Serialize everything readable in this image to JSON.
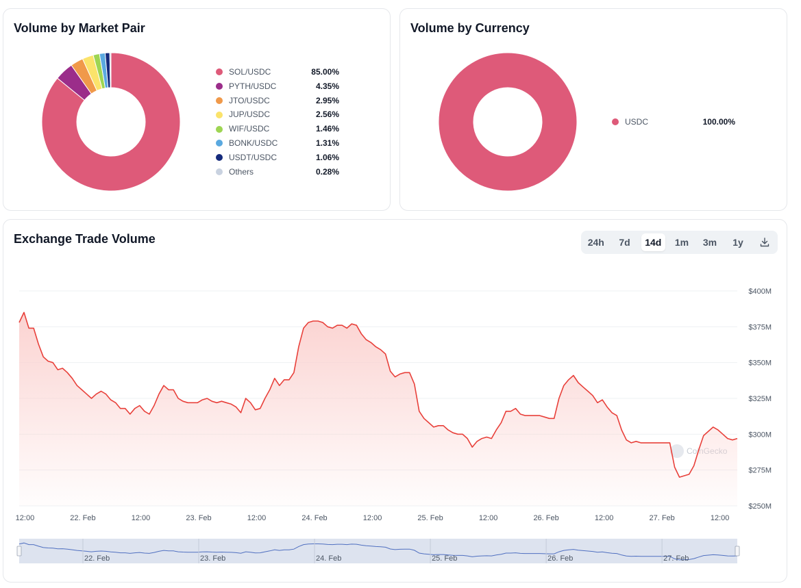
{
  "pair_card": {
    "title": "Volume by Market Pair",
    "items": [
      {
        "label": "SOL/USDC",
        "value": "85.00%",
        "pct": 85.0,
        "color": "#de5a79"
      },
      {
        "label": "PYTH/USDC",
        "value": "4.35%",
        "pct": 4.35,
        "color": "#9b2d8a"
      },
      {
        "label": "JTO/USDC",
        "value": "2.95%",
        "pct": 2.95,
        "color": "#f0994a"
      },
      {
        "label": "JUP/USDC",
        "value": "2.56%",
        "pct": 2.56,
        "color": "#fbe36b"
      },
      {
        "label": "WIF/USDC",
        "value": "1.46%",
        "pct": 1.46,
        "color": "#9ed553"
      },
      {
        "label": "BONK/USDC",
        "value": "1.31%",
        "pct": 1.31,
        "color": "#5aa9e0"
      },
      {
        "label": "USDT/USDC",
        "value": "1.06%",
        "pct": 1.06,
        "color": "#152b7c"
      },
      {
        "label": "Others",
        "value": "0.28%",
        "pct": 0.28,
        "color": "#c9d2e0"
      }
    ]
  },
  "currency_card": {
    "title": "Volume by Currency",
    "items": [
      {
        "label": "USDC",
        "value": "100.00%",
        "pct": 100.0,
        "color": "#de5a79"
      }
    ]
  },
  "volume_card": {
    "title": "Exchange Trade Volume",
    "ranges": [
      "24h",
      "7d",
      "14d",
      "1m",
      "3m",
      "1y"
    ],
    "active_range": "14d",
    "download_icon": "download-icon",
    "watermark": "CoinGecko"
  },
  "chart_data": {
    "type": "area",
    "line_color": "#e8403a",
    "fill_color": "#fbd3d1",
    "ylim": [
      250,
      400
    ],
    "y_unit": "$M",
    "yticks": [
      "$400M",
      "$375M",
      "$350M",
      "$325M",
      "$300M",
      "$275M",
      "$250M"
    ],
    "ytick_values": [
      400,
      375,
      350,
      325,
      300,
      275,
      250
    ],
    "xticks": [
      "12:00",
      "22. Feb",
      "12:00",
      "23. Feb",
      "12:00",
      "24. Feb",
      "12:00",
      "25. Feb",
      "12:00",
      "26. Feb",
      "12:00",
      "27. Feb",
      "12:00"
    ],
    "xtick_values": [
      0.5,
      1,
      1.5,
      2,
      2.5,
      3,
      3.5,
      4,
      4.5,
      5,
      5.5,
      6,
      6.5
    ],
    "x_start": 0.45,
    "x_end": 6.65,
    "navigator_labels": [
      "22. Feb",
      "23. Feb",
      "24. Feb",
      "25. Feb",
      "26. Feb",
      "27. Feb"
    ],
    "y": [
      378,
      385,
      374,
      374,
      363,
      354,
      351,
      350,
      345,
      346,
      343,
      339,
      334,
      331,
      328,
      325,
      328,
      330,
      328,
      324,
      322,
      318,
      318,
      314,
      318,
      320,
      316,
      314,
      320,
      328,
      334,
      331,
      331,
      325,
      323,
      322,
      322,
      322,
      324,
      325,
      323,
      322,
      323,
      322,
      321,
      319,
      315,
      325,
      322,
      317,
      318,
      325,
      331,
      339,
      334,
      338,
      338,
      343,
      361,
      374,
      378,
      379,
      379,
      378,
      375,
      374,
      376,
      376,
      374,
      377,
      376,
      370,
      366,
      364,
      361,
      359,
      356,
      344,
      340,
      342,
      343,
      343,
      335,
      316,
      311,
      308,
      305,
      306,
      306,
      303,
      301,
      300,
      300,
      297,
      291,
      295,
      297,
      298,
      297,
      303,
      308,
      316,
      316,
      318,
      314,
      313,
      313,
      313,
      313,
      312,
      311,
      311,
      325,
      334,
      338,
      341,
      336,
      333,
      330,
      327,
      322,
      324,
      319,
      315,
      313,
      303,
      296,
      294,
      295,
      294,
      294,
      294,
      294,
      294,
      294,
      294,
      277,
      270,
      271,
      272,
      278,
      289,
      299,
      302,
      305,
      303,
      300,
      297,
      296,
      297
    ]
  }
}
